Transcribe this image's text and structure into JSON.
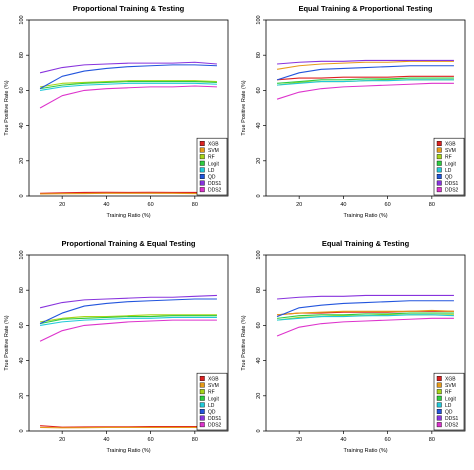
{
  "series_colors": {
    "XGB": "#dd2222",
    "SVM": "#e69a1a",
    "RF": "#a8d418",
    "Logit": "#2ecc40",
    "LD": "#22c9d9",
    "QD": "#2255dd",
    "DDS1": "#8833dd",
    "DDS2": "#dd33cc"
  },
  "chart_data": [
    {
      "type": "line",
      "title": "Proportional Training & Testing",
      "xlabel": "Training Ratio (%)",
      "ylabel": "True Positive Rate (%)",
      "xlim": [
        5,
        95
      ],
      "ylim": [
        0,
        100
      ],
      "xticks": [
        20,
        40,
        60,
        80
      ],
      "yticks": [
        0,
        20,
        40,
        60,
        80,
        100
      ],
      "legend_position": "bottom-right",
      "x": [
        10,
        20,
        30,
        40,
        50,
        60,
        70,
        80,
        90
      ],
      "series": [
        {
          "name": "XGB",
          "values": [
            1.5,
            1.8,
            2.0,
            2.1,
            2.0,
            2.1,
            2.0,
            2.0,
            1.9
          ]
        },
        {
          "name": "SVM",
          "values": [
            1.2,
            1.3,
            1.4,
            1.5,
            1.5,
            1.5,
            1.5,
            1.4,
            1.4
          ]
        },
        {
          "name": "RF",
          "values": [
            62,
            64,
            64.5,
            65,
            65.5,
            65.5,
            65.5,
            65.5,
            65
          ]
        },
        {
          "name": "Logit",
          "values": [
            61,
            63,
            64,
            64.5,
            65,
            65,
            65,
            65,
            64.5
          ]
        },
        {
          "name": "LD",
          "values": [
            60,
            62,
            63,
            63.5,
            64,
            64,
            64,
            64,
            63.5
          ]
        },
        {
          "name": "QD",
          "values": [
            61,
            68,
            71,
            72.5,
            73.5,
            74,
            74.5,
            74.5,
            74
          ]
        },
        {
          "name": "DDS1",
          "values": [
            70,
            73,
            74.5,
            75,
            75.5,
            75.5,
            75.5,
            76,
            75
          ]
        },
        {
          "name": "DDS2",
          "values": [
            50,
            57,
            60,
            61,
            61.5,
            62,
            62,
            62.5,
            62
          ]
        }
      ]
    },
    {
      "type": "line",
      "title": "Equal Training & Proportional Testing",
      "xlabel": "Training Ratio (%)",
      "ylabel": "True Positive Rate (%)",
      "xlim": [
        5,
        95
      ],
      "ylim": [
        0,
        100
      ],
      "xticks": [
        20,
        40,
        60,
        80
      ],
      "yticks": [
        0,
        20,
        40,
        60,
        80,
        100
      ],
      "legend_position": "bottom-right",
      "x": [
        10,
        20,
        30,
        40,
        50,
        60,
        70,
        80,
        90
      ],
      "series": [
        {
          "name": "XGB",
          "values": [
            66,
            67,
            67,
            67.5,
            67.5,
            67.5,
            68,
            68,
            68
          ]
        },
        {
          "name": "SVM",
          "values": [
            72,
            74,
            75,
            75.5,
            76,
            76,
            76.5,
            76.5,
            76.5
          ]
        },
        {
          "name": "RF",
          "values": [
            63,
            64.5,
            65,
            65,
            65.5,
            66,
            66,
            66,
            66
          ]
        },
        {
          "name": "Logit",
          "values": [
            64,
            65,
            66,
            66,
            66.5,
            66.5,
            67,
            67,
            67
          ]
        },
        {
          "name": "LD",
          "values": [
            63,
            64,
            65,
            65,
            65.5,
            65.5,
            66,
            66,
            66
          ]
        },
        {
          "name": "QD",
          "values": [
            66,
            70,
            72,
            72.5,
            73,
            73.5,
            74,
            74,
            74
          ]
        },
        {
          "name": "DDS1",
          "values": [
            75,
            76,
            76.5,
            76.5,
            77,
            77,
            77,
            77,
            77
          ]
        },
        {
          "name": "DDS2",
          "values": [
            55,
            59,
            61,
            62,
            62.5,
            63,
            63.5,
            64,
            64
          ]
        }
      ]
    },
    {
      "type": "line",
      "title": "Proportional Training & Equal Testing",
      "xlabel": "Training Ratio (%)",
      "ylabel": "True Positive Rate (%)",
      "xlim": [
        5,
        95
      ],
      "ylim": [
        0,
        100
      ],
      "xticks": [
        20,
        40,
        60,
        80
      ],
      "yticks": [
        0,
        20,
        40,
        60,
        80,
        100
      ],
      "legend_position": "bottom-right",
      "x": [
        10,
        20,
        30,
        40,
        50,
        60,
        70,
        80,
        90
      ],
      "series": [
        {
          "name": "XGB",
          "values": [
            3,
            2.2,
            2.3,
            2.4,
            2.4,
            2.5,
            2.5,
            2.5,
            2.5
          ]
        },
        {
          "name": "SVM",
          "values": [
            2,
            1.8,
            1.9,
            2.0,
            2.0,
            2.0,
            2.0,
            2.0,
            2.0
          ]
        },
        {
          "name": "RF",
          "values": [
            62,
            64,
            65,
            65,
            65.5,
            66,
            66,
            66,
            66
          ]
        },
        {
          "name": "Logit",
          "values": [
            61,
            63.5,
            64,
            64.5,
            65,
            65,
            65.5,
            65.5,
            65.5
          ]
        },
        {
          "name": "LD",
          "values": [
            60,
            62,
            63,
            63.5,
            64,
            64,
            64.5,
            64.5,
            64.5
          ]
        },
        {
          "name": "QD",
          "values": [
            61,
            67,
            71,
            72.5,
            73.5,
            74,
            74.5,
            75,
            75
          ]
        },
        {
          "name": "DDS1",
          "values": [
            70,
            73,
            74.5,
            75,
            75.5,
            76,
            76,
            76.5,
            77
          ]
        },
        {
          "name": "DDS2",
          "values": [
            51,
            57,
            60,
            61,
            62,
            62.5,
            63,
            63,
            63
          ]
        }
      ]
    },
    {
      "type": "line",
      "title": "Equal Training & Testing",
      "xlabel": "Training Ratio (%)",
      "ylabel": "True Positive Rate (%)",
      "xlim": [
        5,
        95
      ],
      "ylim": [
        0,
        100
      ],
      "xticks": [
        20,
        40,
        60,
        80
      ],
      "yticks": [
        0,
        20,
        40,
        60,
        80,
        100
      ],
      "legend_position": "bottom-right",
      "x": [
        10,
        20,
        30,
        40,
        50,
        60,
        70,
        80,
        90
      ],
      "series": [
        {
          "name": "XGB",
          "values": [
            66,
            67,
            67,
            67.5,
            67.5,
            67.5,
            68,
            68,
            68
          ]
        },
        {
          "name": "SVM",
          "values": [
            66,
            67,
            67.5,
            68,
            68,
            68,
            68,
            68.5,
            68
          ]
        },
        {
          "name": "RF",
          "values": [
            63,
            64.5,
            65,
            65.5,
            65.5,
            66,
            66,
            66,
            66
          ]
        },
        {
          "name": "Logit",
          "values": [
            64,
            65.5,
            66,
            66,
            66.5,
            66.5,
            67,
            67,
            67
          ]
        },
        {
          "name": "LD",
          "values": [
            63,
            64,
            65,
            65,
            65.5,
            65.5,
            66,
            66,
            65.5
          ]
        },
        {
          "name": "QD",
          "values": [
            65,
            70,
            71.5,
            72.5,
            73,
            73.5,
            74,
            74,
            74
          ]
        },
        {
          "name": "DDS1",
          "values": [
            75,
            76,
            76.5,
            76.5,
            77,
            77,
            77,
            77,
            77
          ]
        },
        {
          "name": "DDS2",
          "values": [
            54,
            59,
            61,
            62,
            62.5,
            63,
            63.5,
            64,
            64
          ]
        }
      ]
    }
  ]
}
